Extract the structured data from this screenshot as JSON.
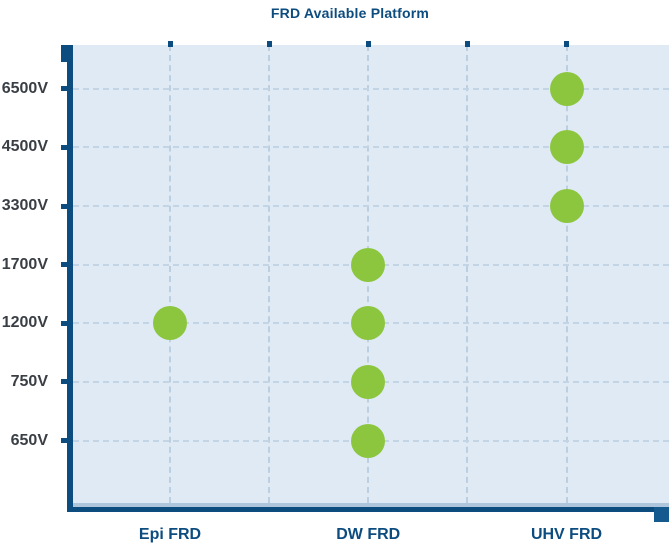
{
  "title": "FRD Available Platform",
  "colors": {
    "accent_navy": "#0d4c7f",
    "dot_green": "#8cc63f",
    "plot_background": "#dfeaf4",
    "gridline": "#c3d4e4",
    "y_label_text": "#3a3f45"
  },
  "chart_data": {
    "type": "scatter",
    "title": "FRD Available Platform",
    "categories": [
      "Epi FRD",
      "DW FRD",
      "UHV FRD"
    ],
    "y_tick_labels": [
      "6500V",
      "4500V",
      "3300V",
      "1700V",
      "1200V",
      "750V",
      "650V"
    ],
    "points": [
      {
        "category": "Epi FRD",
        "voltage": "1200V"
      },
      {
        "category": "DW FRD",
        "voltage": "1700V"
      },
      {
        "category": "DW FRD",
        "voltage": "1200V"
      },
      {
        "category": "DW FRD",
        "voltage": "750V"
      },
      {
        "category": "DW FRD",
        "voltage": "650V"
      },
      {
        "category": "UHV FRD",
        "voltage": "6500V"
      },
      {
        "category": "UHV FRD",
        "voltage": "4500V"
      },
      {
        "category": "UHV FRD",
        "voltage": "3300V"
      }
    ],
    "legend": "none",
    "grid": "dashed",
    "marker": "circle",
    "x_axis_side": "bottom",
    "y_axis_side": "left"
  }
}
